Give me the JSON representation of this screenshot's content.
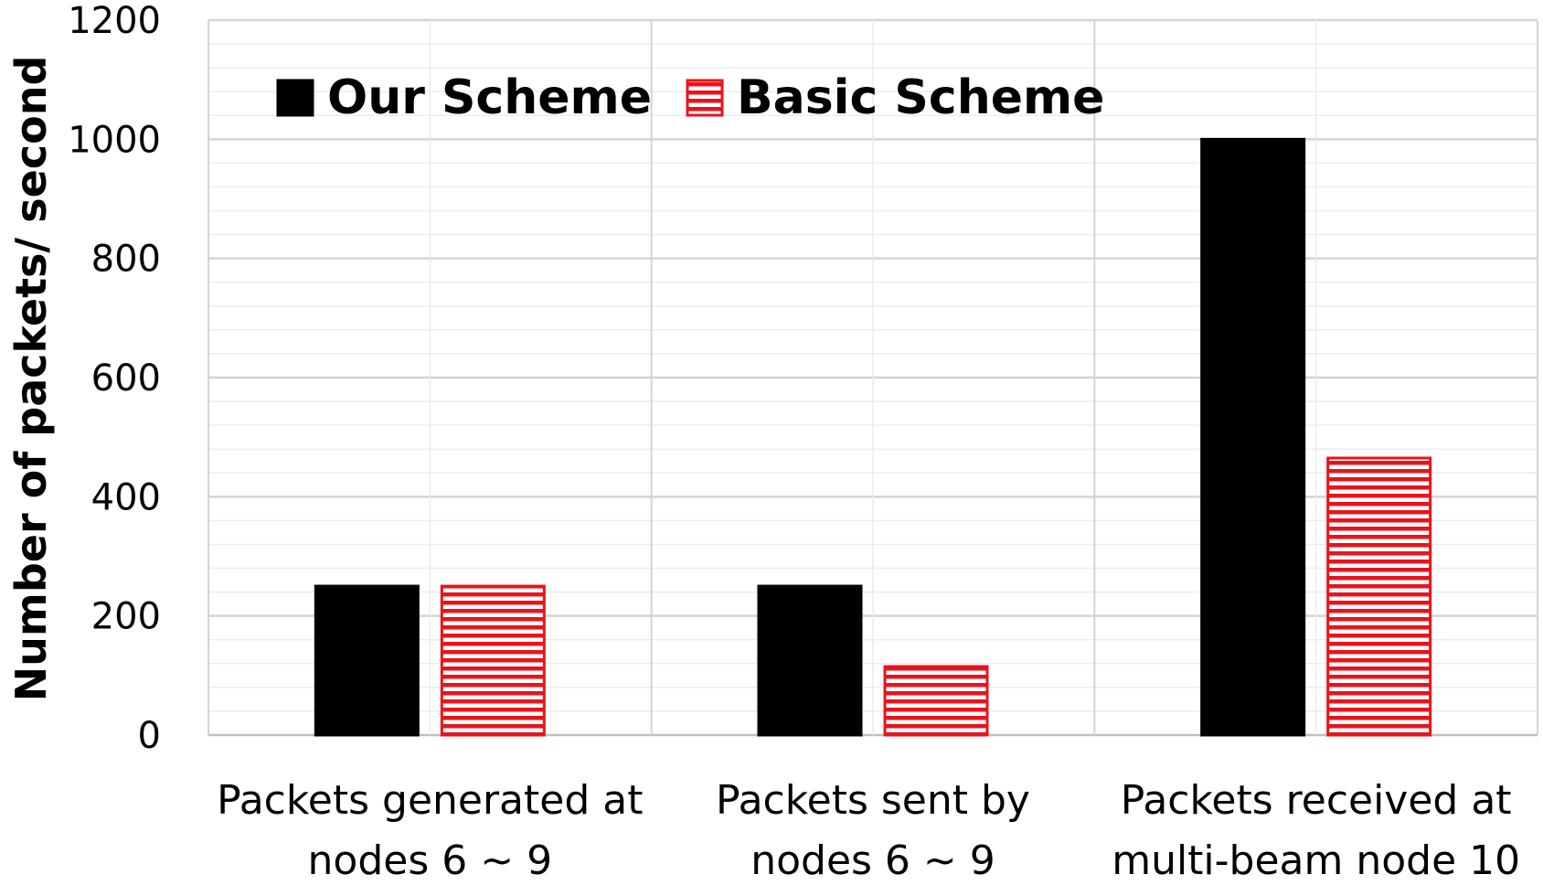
{
  "chart_data": {
    "type": "bar",
    "ylabel": "Number of packets/ second",
    "xlabel": "",
    "ylim": [
      0,
      1200
    ],
    "yticks": [
      0,
      200,
      400,
      600,
      800,
      1000,
      1200
    ],
    "minor_step": 40,
    "grid": true,
    "legend_position": "top-left",
    "categories": [
      [
        "Packets generated at",
        "nodes 6 ~ 9"
      ],
      [
        "Packets sent by",
        "nodes 6 ~ 9"
      ],
      [
        "Packets received at",
        "multi-beam node 10"
      ]
    ],
    "series": [
      {
        "name": "Our Scheme",
        "values": [
          250,
          250,
          1000
        ],
        "color": "#000000",
        "pattern": "solid"
      },
      {
        "name": "Basic Scheme",
        "values": [
          250,
          115,
          465
        ],
        "color": "#e8141c",
        "pattern": "horizontal-stripes"
      }
    ]
  }
}
